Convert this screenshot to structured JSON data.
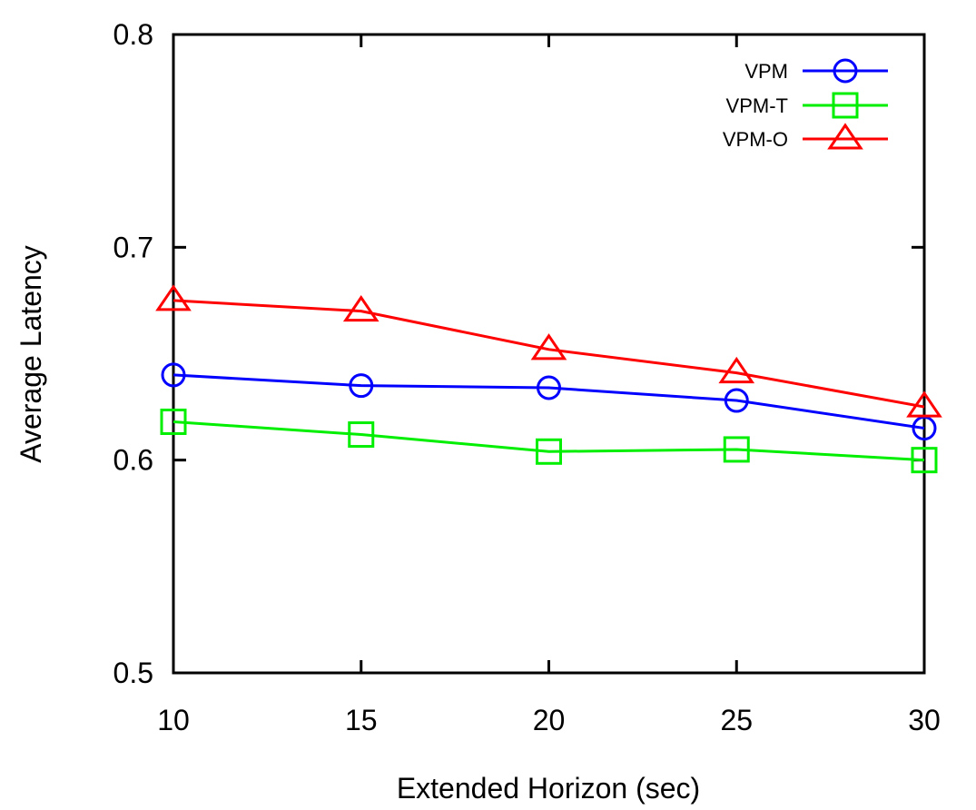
{
  "chart_data": {
    "type": "line",
    "title": "",
    "xlabel": "Extended Horizon (sec)",
    "ylabel": "Average Latency",
    "x": [
      10,
      15,
      20,
      25,
      30
    ],
    "x_tick_labels": [
      "10",
      "15",
      "20",
      "25",
      "30"
    ],
    "y_tick_values": [
      0.5,
      0.6,
      0.7,
      0.8
    ],
    "y_tick_labels": [
      "0.5",
      "0.6",
      "0.7",
      "0.8"
    ],
    "xlim": [
      10,
      30
    ],
    "ylim": [
      0.5,
      0.8
    ],
    "grid": false,
    "legend_position": "top-right",
    "series": [
      {
        "name": "VPM",
        "color": "#0000ff",
        "marker": "circle",
        "values": [
          0.64,
          0.635,
          0.634,
          0.628,
          0.615
        ]
      },
      {
        "name": "VPM-T",
        "color": "#00ee00",
        "marker": "square",
        "values": [
          0.618,
          0.612,
          0.604,
          0.605,
          0.6
        ]
      },
      {
        "name": "VPM-O",
        "color": "#ff0000",
        "marker": "triangle",
        "values": [
          0.675,
          0.67,
          0.652,
          0.641,
          0.625
        ]
      }
    ]
  }
}
